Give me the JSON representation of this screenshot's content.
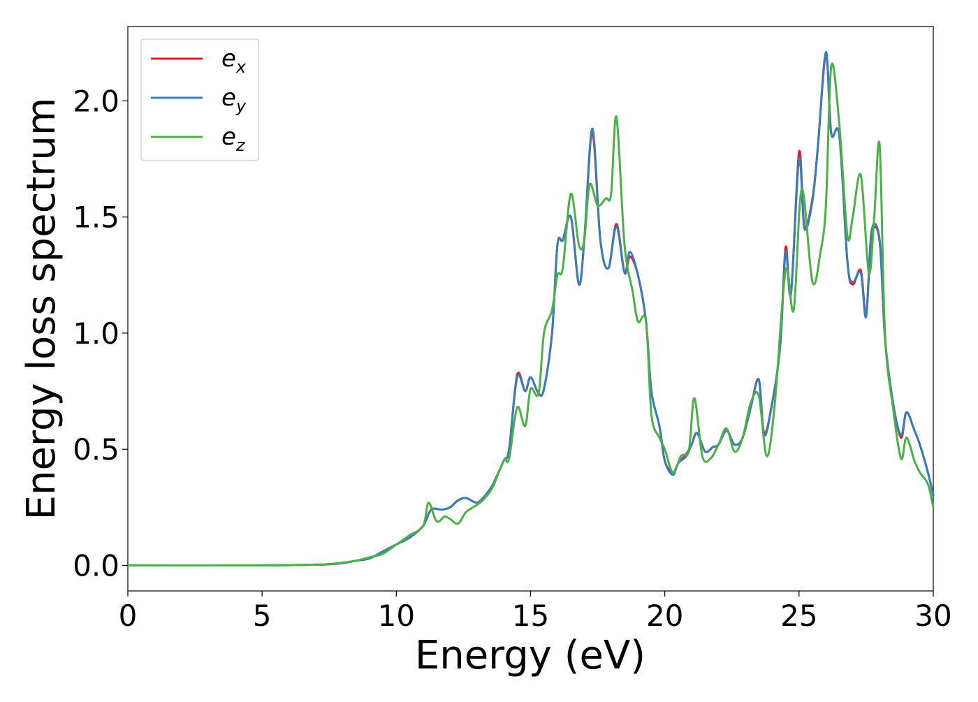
{
  "chart_data": {
    "type": "line",
    "title": "",
    "xlabel": "Energy (eV)",
    "ylabel": "Energy loss spectrum",
    "xlim": [
      0,
      30
    ],
    "ylim": [
      -0.11,
      2.32
    ],
    "xticks": [
      0,
      5,
      10,
      15,
      20,
      25,
      30
    ],
    "xtick_labels": [
      "0",
      "5",
      "10",
      "15",
      "20",
      "25",
      "30"
    ],
    "yticks": [
      0.0,
      0.5,
      1.0,
      1.5,
      2.0
    ],
    "ytick_labels": [
      "0.0",
      "0.5",
      "1.0",
      "1.5",
      "2.0"
    ],
    "grid": false,
    "legend_position": "top-left",
    "series": [
      {
        "name": "e_x",
        "legend_base": "e",
        "legend_sub": "x",
        "color": "#e41a1c",
        "x": [
          0,
          5,
          7,
          7.5,
          8,
          8.5,
          9,
          9.5,
          10,
          10.5,
          11,
          11.3,
          11.7,
          12,
          12.3,
          12.6,
          13,
          13.3,
          13.6,
          14,
          14.2,
          14.5,
          14.8,
          15.0,
          15.3,
          15.5,
          15.8,
          16.0,
          16.2,
          16.5,
          16.8,
          17.0,
          17.3,
          17.6,
          17.9,
          18.2,
          18.5,
          18.7,
          19.0,
          19.3,
          19.5,
          19.8,
          20.0,
          20.3,
          20.5,
          20.8,
          21.0,
          21.2,
          21.5,
          21.8,
          22.0,
          22.3,
          22.6,
          22.9,
          23.2,
          23.5,
          23.7,
          24.0,
          24.3,
          24.5,
          24.7,
          25.0,
          25.2,
          25.5,
          25.7,
          26.0,
          26.2,
          26.5,
          26.8,
          27.0,
          27.3,
          27.5,
          27.7,
          28.0,
          28.2,
          28.5,
          28.8,
          29.0,
          29.3,
          29.5,
          29.8,
          30
        ],
        "y": [
          0,
          0,
          0.003,
          0.005,
          0.01,
          0.02,
          0.03,
          0.06,
          0.09,
          0.12,
          0.17,
          0.24,
          0.24,
          0.25,
          0.28,
          0.29,
          0.27,
          0.3,
          0.35,
          0.45,
          0.5,
          0.82,
          0.75,
          0.81,
          0.74,
          0.76,
          1.0,
          1.38,
          1.4,
          1.5,
          1.21,
          1.4,
          1.86,
          1.4,
          1.28,
          1.47,
          1.26,
          1.33,
          1.25,
          1.05,
          0.75,
          0.6,
          0.45,
          0.4,
          0.44,
          0.48,
          0.52,
          0.57,
          0.49,
          0.51,
          0.52,
          0.58,
          0.52,
          0.55,
          0.68,
          0.8,
          0.57,
          0.7,
          0.95,
          1.37,
          1.17,
          1.78,
          1.46,
          1.58,
          1.8,
          2.2,
          1.86,
          1.85,
          1.31,
          1.21,
          1.27,
          1.08,
          1.42,
          1.4,
          0.98,
          0.7,
          0.55,
          0.66,
          0.58,
          0.52,
          0.4,
          0.3
        ]
      },
      {
        "name": "e_y",
        "legend_base": "e",
        "legend_sub": "y",
        "color": "#377eb8",
        "x": [
          0,
          5,
          7,
          7.5,
          8,
          8.5,
          9,
          9.5,
          10,
          10.5,
          11,
          11.3,
          11.7,
          12,
          12.3,
          12.6,
          13,
          13.3,
          13.6,
          14,
          14.2,
          14.5,
          14.8,
          15.0,
          15.3,
          15.5,
          15.8,
          16.0,
          16.2,
          16.5,
          16.8,
          17.0,
          17.3,
          17.6,
          17.9,
          18.2,
          18.5,
          18.7,
          19.0,
          19.3,
          19.5,
          19.8,
          20.0,
          20.3,
          20.5,
          20.8,
          21.0,
          21.2,
          21.5,
          21.8,
          22.0,
          22.3,
          22.6,
          22.9,
          23.2,
          23.5,
          23.7,
          24.0,
          24.3,
          24.5,
          24.7,
          25.0,
          25.2,
          25.5,
          25.7,
          26.0,
          26.2,
          26.5,
          26.8,
          27.0,
          27.3,
          27.5,
          27.7,
          28.0,
          28.2,
          28.5,
          28.8,
          29.0,
          29.3,
          29.5,
          29.8,
          30
        ],
        "y": [
          0,
          0,
          0.003,
          0.005,
          0.01,
          0.02,
          0.03,
          0.06,
          0.09,
          0.12,
          0.17,
          0.24,
          0.24,
          0.25,
          0.28,
          0.29,
          0.27,
          0.3,
          0.35,
          0.45,
          0.5,
          0.81,
          0.75,
          0.81,
          0.74,
          0.76,
          1.0,
          1.38,
          1.4,
          1.5,
          1.21,
          1.4,
          1.88,
          1.4,
          1.28,
          1.46,
          1.26,
          1.35,
          1.25,
          1.05,
          0.75,
          0.6,
          0.45,
          0.39,
          0.44,
          0.47,
          0.52,
          0.57,
          0.49,
          0.51,
          0.52,
          0.58,
          0.52,
          0.55,
          0.68,
          0.8,
          0.56,
          0.7,
          0.95,
          1.35,
          1.17,
          1.75,
          1.45,
          1.57,
          1.8,
          2.21,
          1.86,
          1.85,
          1.31,
          1.22,
          1.26,
          1.07,
          1.44,
          1.4,
          0.98,
          0.7,
          0.56,
          0.66,
          0.58,
          0.52,
          0.4,
          0.3
        ]
      },
      {
        "name": "e_z",
        "legend_base": "e",
        "legend_sub": "z",
        "color": "#4daf4a",
        "x": [
          0,
          5,
          7,
          7.5,
          8,
          8.5,
          9,
          9.5,
          10,
          10.5,
          11,
          11.2,
          11.5,
          11.8,
          12.0,
          12.3,
          12.6,
          13.0,
          13.3,
          13.6,
          14.0,
          14.2,
          14.5,
          14.8,
          15.0,
          15.3,
          15.5,
          15.8,
          16.0,
          16.2,
          16.5,
          16.8,
          17.0,
          17.2,
          17.5,
          17.8,
          18.0,
          18.2,
          18.5,
          18.8,
          19.0,
          19.3,
          19.5,
          19.8,
          20.0,
          20.3,
          20.6,
          20.9,
          21.1,
          21.4,
          21.7,
          22.0,
          22.3,
          22.6,
          22.9,
          23.2,
          23.5,
          23.8,
          24.1,
          24.5,
          24.8,
          25.1,
          25.5,
          25.8,
          26.0,
          26.2,
          26.5,
          26.8,
          27.0,
          27.3,
          27.6,
          27.8,
          28.0,
          28.2,
          28.5,
          28.8,
          29.0,
          29.3,
          29.5,
          29.8,
          30
        ],
        "y": [
          0,
          0,
          0.003,
          0.006,
          0.012,
          0.02,
          0.035,
          0.05,
          0.09,
          0.13,
          0.17,
          0.27,
          0.19,
          0.21,
          0.2,
          0.18,
          0.23,
          0.26,
          0.29,
          0.34,
          0.45,
          0.46,
          0.68,
          0.6,
          0.76,
          0.74,
          1.0,
          1.1,
          1.25,
          1.28,
          1.6,
          1.38,
          1.4,
          1.64,
          1.55,
          1.58,
          1.6,
          1.93,
          1.38,
          1.18,
          1.05,
          1.05,
          0.65,
          0.55,
          0.5,
          0.4,
          0.47,
          0.5,
          0.72,
          0.47,
          0.46,
          0.52,
          0.59,
          0.49,
          0.55,
          0.7,
          0.73,
          0.47,
          0.7,
          1.27,
          1.1,
          1.62,
          1.22,
          1.35,
          1.55,
          2.15,
          1.9,
          1.42,
          1.5,
          1.68,
          1.26,
          1.5,
          1.81,
          1.0,
          0.68,
          0.46,
          0.55,
          0.45,
          0.4,
          0.35,
          0.25
        ]
      }
    ]
  }
}
